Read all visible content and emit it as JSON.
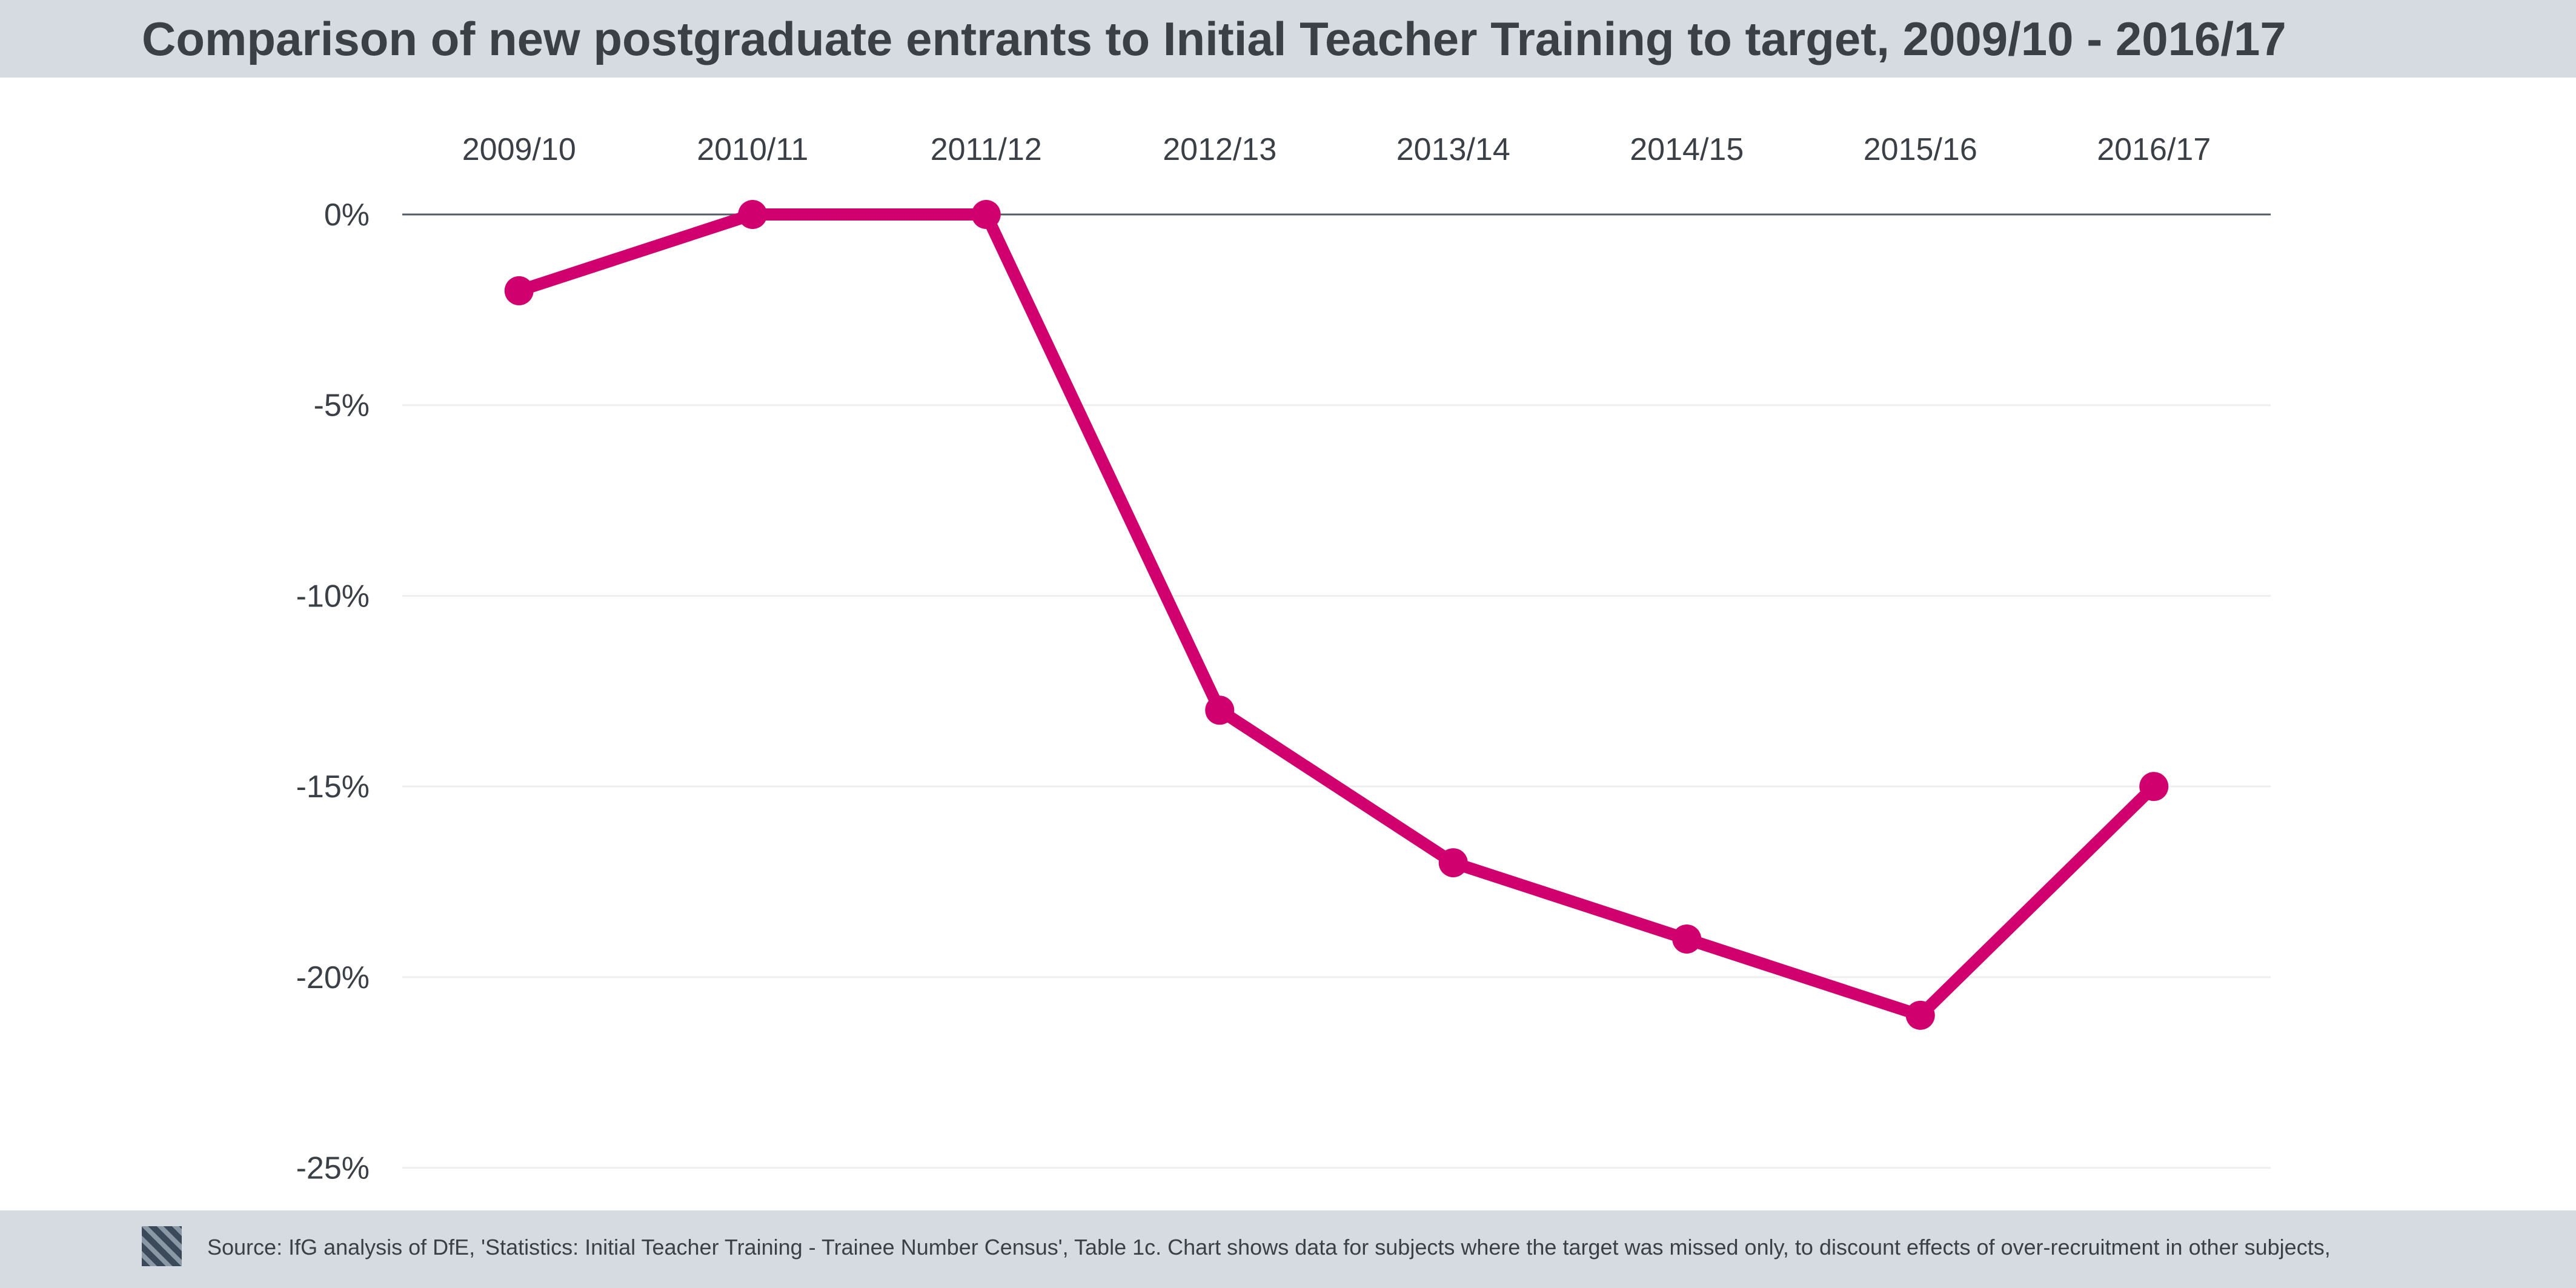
{
  "header": {
    "title": "Comparison of new postgraduate entrants to Initial Teacher Training to target, 2009/10 - 2016/17"
  },
  "footer": {
    "logo_icon": "ifg-logo-icon",
    "source": "Source: IfG analysis of DfE, 'Statistics:  Initial Teacher Training - Trainee Number Census', Table 1c. Chart shows data for subjects where the target was missed only, to discount effects of over-recruitment in other subjects,"
  },
  "chart_data": {
    "type": "line",
    "title": "Comparison of new postgraduate entrants to Initial Teacher Training to target, 2009/10 - 2016/17",
    "categories": [
      "2009/10",
      "2010/11",
      "2011/12",
      "2012/13",
      "2013/14",
      "2014/15",
      "2015/16",
      "2016/17"
    ],
    "series": [
      {
        "values": [
          -2,
          0,
          0,
          -13,
          -17,
          -19,
          -21,
          -15
        ],
        "color": "#d1006f"
      }
    ],
    "y_ticks": [
      0,
      -5,
      -10,
      -15,
      -20,
      -25
    ],
    "y_tick_labels": [
      "0%",
      "-5%",
      "-10%",
      "-15%",
      "-20%",
      "-25%"
    ],
    "ylim": [
      -27.5,
      0
    ],
    "xlabel": "",
    "ylabel": "",
    "x_axis_position": "top",
    "grid": true,
    "legend": "none"
  }
}
